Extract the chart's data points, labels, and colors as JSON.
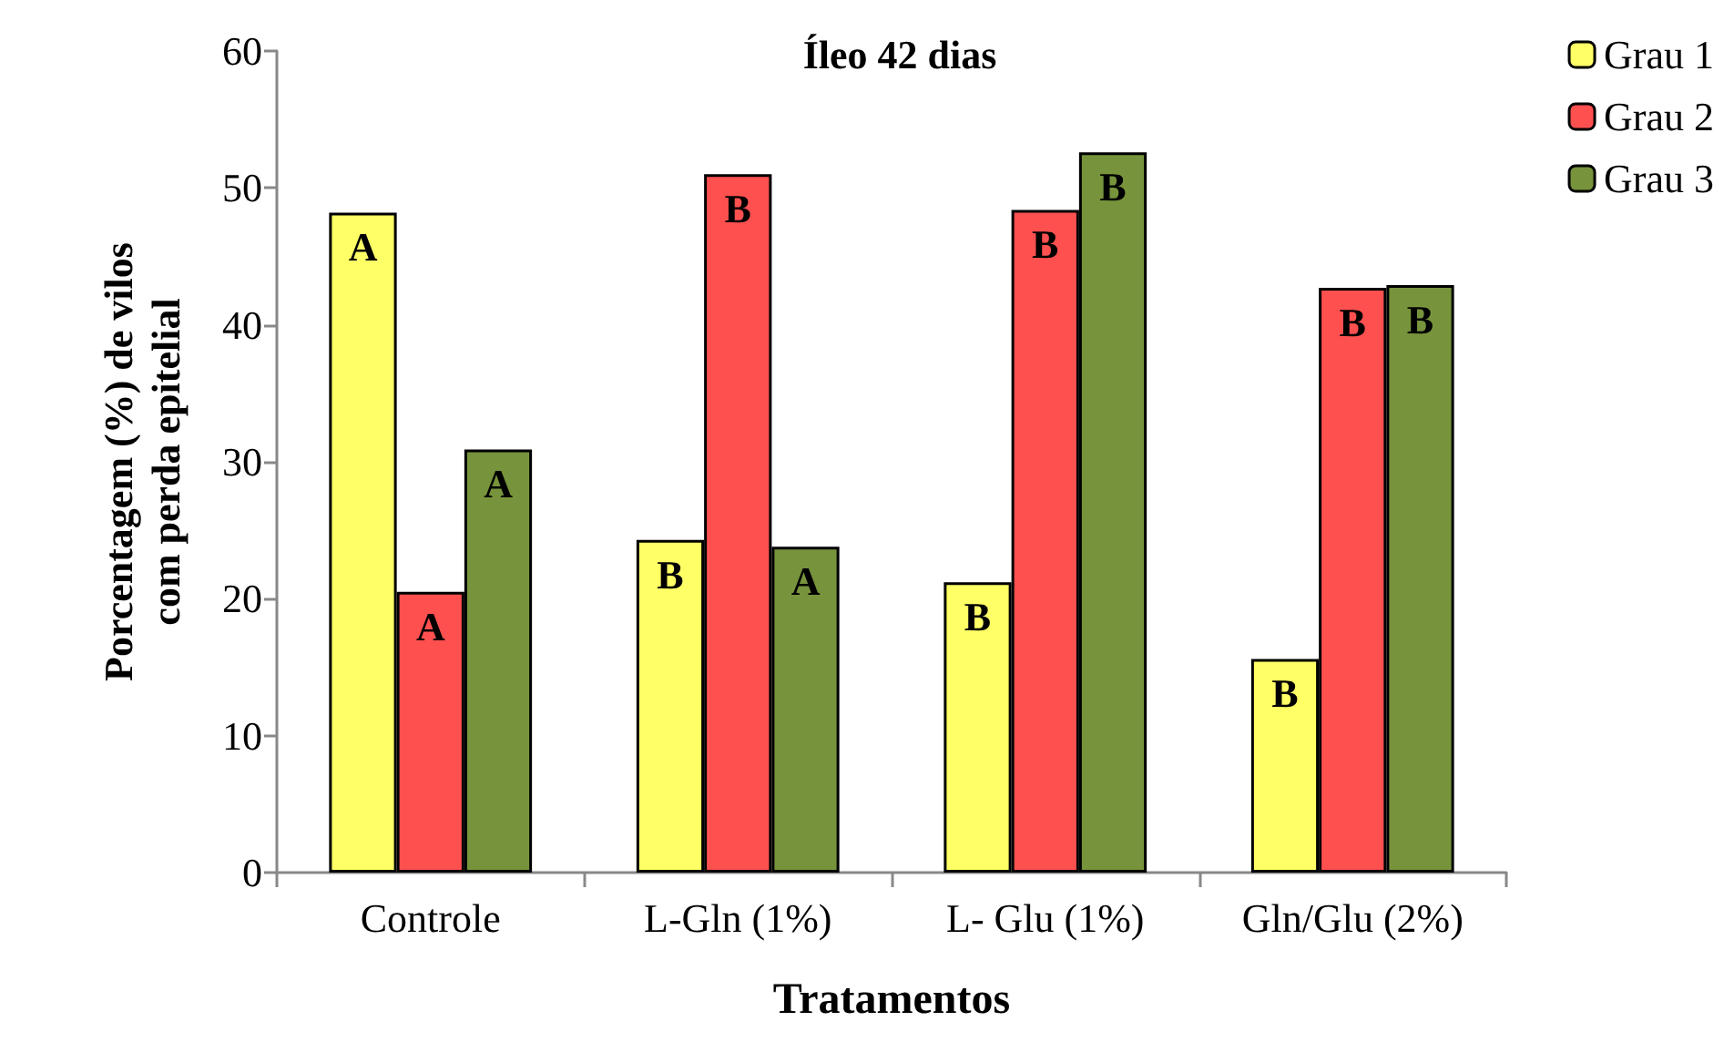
{
  "chart_data": {
    "type": "bar",
    "title": "Íleo 42 dias",
    "xlabel": "Tratamentos",
    "ylabel": "Porcentagem (%) de vilos\ncom perda epitelial",
    "categories": [
      "Controle",
      "L-Gln (1%)",
      "L- Glu (1%)",
      "Gln/Glu (2%)"
    ],
    "series": [
      {
        "name": "Grau 1",
        "color": "#ffff66",
        "values": [
          48.2,
          24.3,
          21.2,
          15.6
        ],
        "value_labels": [
          "A",
          "B",
          "B",
          "B"
        ]
      },
      {
        "name": "Grau 2",
        "color": "#ff5050",
        "values": [
          20.5,
          51.0,
          48.4,
          42.7
        ],
        "value_labels": [
          "A",
          "B",
          "B",
          "B"
        ]
      },
      {
        "name": "Grau 3",
        "color": "#77933c",
        "values": [
          30.9,
          23.8,
          52.6,
          42.9
        ],
        "value_labels": [
          "A",
          "A",
          "B",
          "B"
        ]
      }
    ],
    "ylim": [
      0,
      60
    ],
    "yticks": [
      0,
      10,
      20,
      30,
      40,
      50,
      60
    ],
    "grid": false,
    "legend": "top right"
  }
}
